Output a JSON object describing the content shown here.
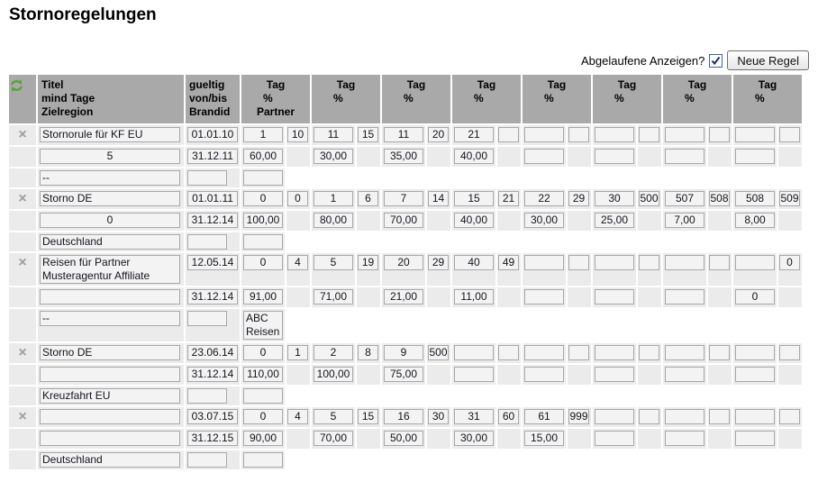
{
  "page": {
    "title": "Stornoregelungen"
  },
  "controls": {
    "expired_label": "Abgelaufene Anzeigen?",
    "expired_checked": true,
    "new_rule_label": "Neue Regel"
  },
  "colors": {
    "header_bg": "#a9a9a9",
    "cell_bg": "#ebebeb",
    "input_bg": "#f3f3f3",
    "input_border": "#a8a8a8",
    "refresh_green": "#55a62e",
    "checkbox_blue": "#3c61b4",
    "delete_gray": "#9e9e9e"
  },
  "table": {
    "icons": {
      "header": "refresh-icon",
      "row_delete": "x-delete-icon"
    },
    "delete_glyph": "×",
    "headers": {
      "titel_lines": [
        "Titel",
        "mind Tage",
        "Zielregion"
      ],
      "gueltig_lines": [
        "gueltig",
        "von/bis",
        "Brandid"
      ],
      "tag_first_lines": [
        "Tag",
        "%",
        "Partner"
      ],
      "tag_lines": [
        "Tag",
        "%"
      ],
      "tag_count": 8
    },
    "groups": [
      {
        "titel": "Stornorule für KF EU",
        "mind_tage": "5",
        "zielregion": "--",
        "von": "01.01.10",
        "bis": "31.12.11",
        "brandid": "",
        "partner": "",
        "days": [
          [
            "1",
            "10"
          ],
          [
            "11",
            "15"
          ],
          [
            "11",
            "20"
          ],
          [
            "21",
            ""
          ],
          [
            "",
            ""
          ],
          [
            "",
            ""
          ],
          [
            "",
            ""
          ],
          [
            "",
            ""
          ]
        ],
        "percents": [
          "60,00",
          "30,00",
          "35,00",
          "40,00",
          "",
          "",
          "",
          ""
        ]
      },
      {
        "titel": "Storno DE",
        "mind_tage": "0",
        "zielregion": "Deutschland",
        "von": "01.01.11",
        "bis": "31.12.14",
        "brandid": "",
        "partner": "",
        "days": [
          [
            "0",
            "0"
          ],
          [
            "1",
            "6"
          ],
          [
            "7",
            "14"
          ],
          [
            "15",
            "21"
          ],
          [
            "22",
            "29"
          ],
          [
            "30",
            "500"
          ],
          [
            "507",
            "508"
          ],
          [
            "508",
            "509"
          ]
        ],
        "percents": [
          "100,00",
          "80,00",
          "70,00",
          "40,00",
          "30,00",
          "25,00",
          "7,00",
          "8,00"
        ]
      },
      {
        "titel": "Reisen für Partner Musteragentur Affiliate",
        "mind_tage": "",
        "zielregion": "--",
        "von": "12.05.14",
        "bis": "31.12.14",
        "brandid": "",
        "partner": "ABC Reisen",
        "days": [
          [
            "0",
            "4"
          ],
          [
            "5",
            "19"
          ],
          [
            "20",
            "29"
          ],
          [
            "40",
            "49"
          ],
          [
            "",
            ""
          ],
          [
            "",
            ""
          ],
          [
            "",
            ""
          ],
          [
            "",
            "0"
          ]
        ],
        "percents": [
          "91,00",
          "71,00",
          "21,00",
          "11,00",
          "",
          "",
          "",
          "0"
        ]
      },
      {
        "titel": "Storno DE",
        "mind_tage": "",
        "zielregion": "Kreuzfahrt EU",
        "von": "23.06.14",
        "bis": "31.12.14",
        "brandid": "",
        "partner": "",
        "days": [
          [
            "0",
            "1"
          ],
          [
            "2",
            "8"
          ],
          [
            "9",
            "500"
          ],
          [
            "",
            ""
          ],
          [
            "",
            ""
          ],
          [
            "",
            ""
          ],
          [
            "",
            ""
          ],
          [
            "",
            ""
          ]
        ],
        "percents": [
          "110,00",
          "100,00",
          "75,00",
          "",
          "",
          "",
          "",
          ""
        ]
      },
      {
        "titel": "",
        "mind_tage": "",
        "zielregion": "Deutschland",
        "von": "03.07.15",
        "bis": "31.12.15",
        "brandid": "",
        "partner": "",
        "days": [
          [
            "0",
            "4"
          ],
          [
            "5",
            "15"
          ],
          [
            "16",
            "30"
          ],
          [
            "31",
            "60"
          ],
          [
            "61",
            "999"
          ],
          [
            "",
            ""
          ],
          [
            "",
            ""
          ],
          [
            "",
            ""
          ]
        ],
        "percents": [
          "90,00",
          "70,00",
          "50,00",
          "30,00",
          "15,00",
          "",
          "",
          ""
        ]
      }
    ]
  }
}
